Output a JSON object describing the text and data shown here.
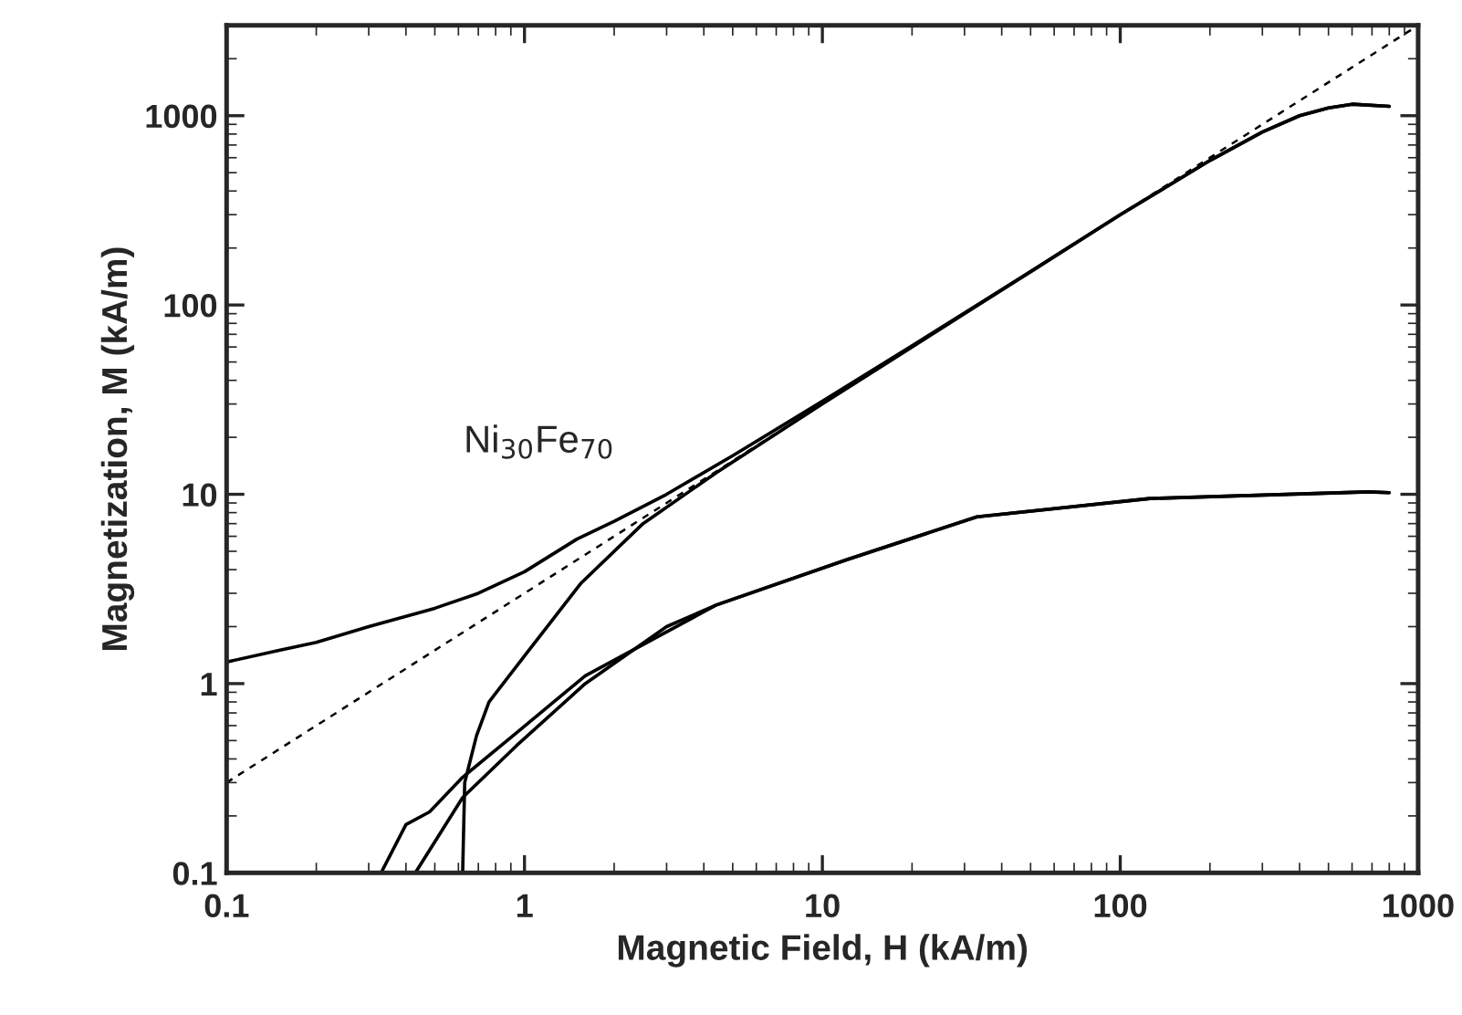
{
  "chart_data": {
    "type": "line",
    "xlabel": "Magnetic Field, H (kA/m)",
    "ylabel": "Magnetization, M (kA/m)",
    "log": "xy",
    "grid": false,
    "legend": false,
    "marker": "none",
    "xlim": [
      0.1,
      1000
    ],
    "ylim": [
      0.1,
      3000
    ],
    "xticks": [
      0.1,
      1,
      10,
      100,
      1000
    ],
    "yticks": [
      0.1,
      1,
      10,
      100,
      1000
    ],
    "series": [
      {
        "name": "Ni$_{30}$Fe$_{70}$",
        "color": "#000000",
        "line_style": "solid",
        "x": [
          0.1,
          0.15,
          0.2,
          0.3,
          0.5,
          0.7,
          1,
          1.5,
          2,
          3,
          5,
          10,
          20,
          50,
          100,
          200,
          300,
          400,
          500,
          600,
          800
        ],
        "values": [
          1.3,
          1.5,
          1.65,
          2.0,
          2.5,
          3.0,
          3.9,
          5.8,
          7.2,
          10,
          16,
          31,
          61,
          150,
          300,
          580,
          820,
          1000,
          1100,
          1150,
          1120
        ]
      },
      {
        "color": "#000000",
        "line_style": "solid",
        "x": [
          0.62,
          0.63,
          0.69,
          0.76,
          1,
          1.55,
          2.5,
          4.4,
          10,
          20,
          50,
          100,
          200,
          300,
          400,
          500,
          600,
          800
        ],
        "values": [
          0.1,
          0.3,
          0.53,
          0.8,
          1.4,
          3.4,
          7,
          13,
          30,
          60,
          150,
          300,
          580,
          820,
          1000,
          1100,
          1150,
          1120
        ]
      },
      {
        "color": "#000000",
        "line_style": "solid",
        "x": [
          0.33,
          0.4,
          0.48,
          0.62,
          0.94,
          1.6,
          4.4,
          12,
          33,
          126,
          680,
          800
        ],
        "values": [
          0.1,
          0.18,
          0.21,
          0.32,
          0.55,
          1.1,
          2.6,
          4.5,
          7.6,
          9.5,
          10.3,
          10.2
        ]
      },
      {
        "color": "#000000",
        "line_style": "solid",
        "x": [
          0.43,
          0.62,
          0.94,
          1.6,
          3,
          4.4,
          12,
          33,
          126,
          680,
          800
        ],
        "values": [
          0.1,
          0.25,
          0.47,
          1.0,
          2.0,
          2.6,
          4.5,
          7.6,
          9.5,
          10.3,
          10.2
        ]
      },
      {
        "color": "#000000",
        "line_style": "dashed",
        "x": [
          0.1,
          1000
        ],
        "values": [
          0.3,
          3000
        ]
      }
    ]
  }
}
